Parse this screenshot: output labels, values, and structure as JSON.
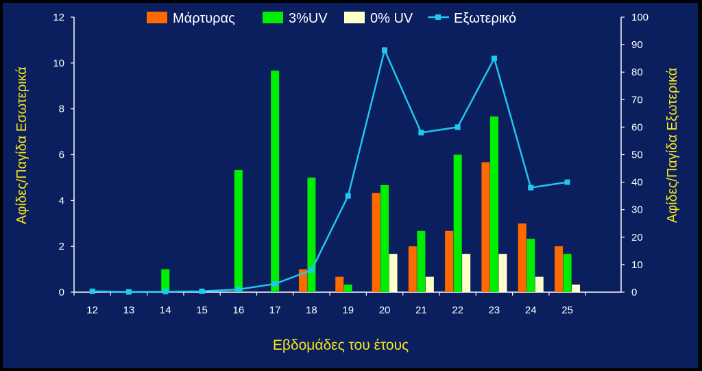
{
  "chart_data": {
    "type": "bar",
    "categories": [
      "12",
      "13",
      "14",
      "15",
      "16",
      "17",
      "18",
      "19",
      "20",
      "21",
      "22",
      "23",
      "24",
      "25"
    ],
    "xlabel": "Εβδομάδες του έτους",
    "ylabel": "Αφίδες/Παγίδα Εσωτερικά",
    "y2label": "Αφίδες/Παγίδα Εξωτερικά",
    "ylim": [
      0,
      12
    ],
    "y2lim": [
      0,
      100
    ],
    "yticks": [
      "0",
      "2",
      "4",
      "6",
      "8",
      "10",
      "12"
    ],
    "y2ticks": [
      "0",
      "10",
      "20",
      "30",
      "40",
      "50",
      "60",
      "70",
      "80",
      "90",
      "100"
    ],
    "grid": false,
    "legend_position": "top",
    "series": [
      {
        "name": "Μάρτυρας",
        "kind": "bar",
        "axis": "left",
        "color": "#ff6a00",
        "values": [
          0,
          0,
          0,
          0,
          0,
          0,
          1.0,
          0.67,
          4.33,
          2.0,
          2.67,
          5.67,
          3.0,
          2.0
        ]
      },
      {
        "name": "3%UV",
        "kind": "bar",
        "axis": "left",
        "color": "#00ee00",
        "values": [
          0,
          0,
          1.0,
          0,
          5.33,
          9.67,
          5.0,
          0.33,
          4.67,
          2.67,
          6.0,
          7.67,
          2.33,
          1.67
        ]
      },
      {
        "name": "0% UV",
        "kind": "bar",
        "axis": "left",
        "color": "#ffffcc",
        "values": [
          0,
          0,
          0,
          0,
          0,
          0,
          0,
          0,
          1.67,
          0.67,
          1.67,
          1.67,
          0.67,
          0.33
        ]
      },
      {
        "name": "Εξωτερικό",
        "kind": "line",
        "axis": "right",
        "color": "#1ec8f0",
        "values": [
          0.3,
          0.1,
          0.2,
          0.3,
          1.0,
          3.0,
          8.0,
          35.0,
          88.0,
          58.0,
          60.0,
          85.0,
          38.0,
          40.0
        ]
      }
    ]
  }
}
